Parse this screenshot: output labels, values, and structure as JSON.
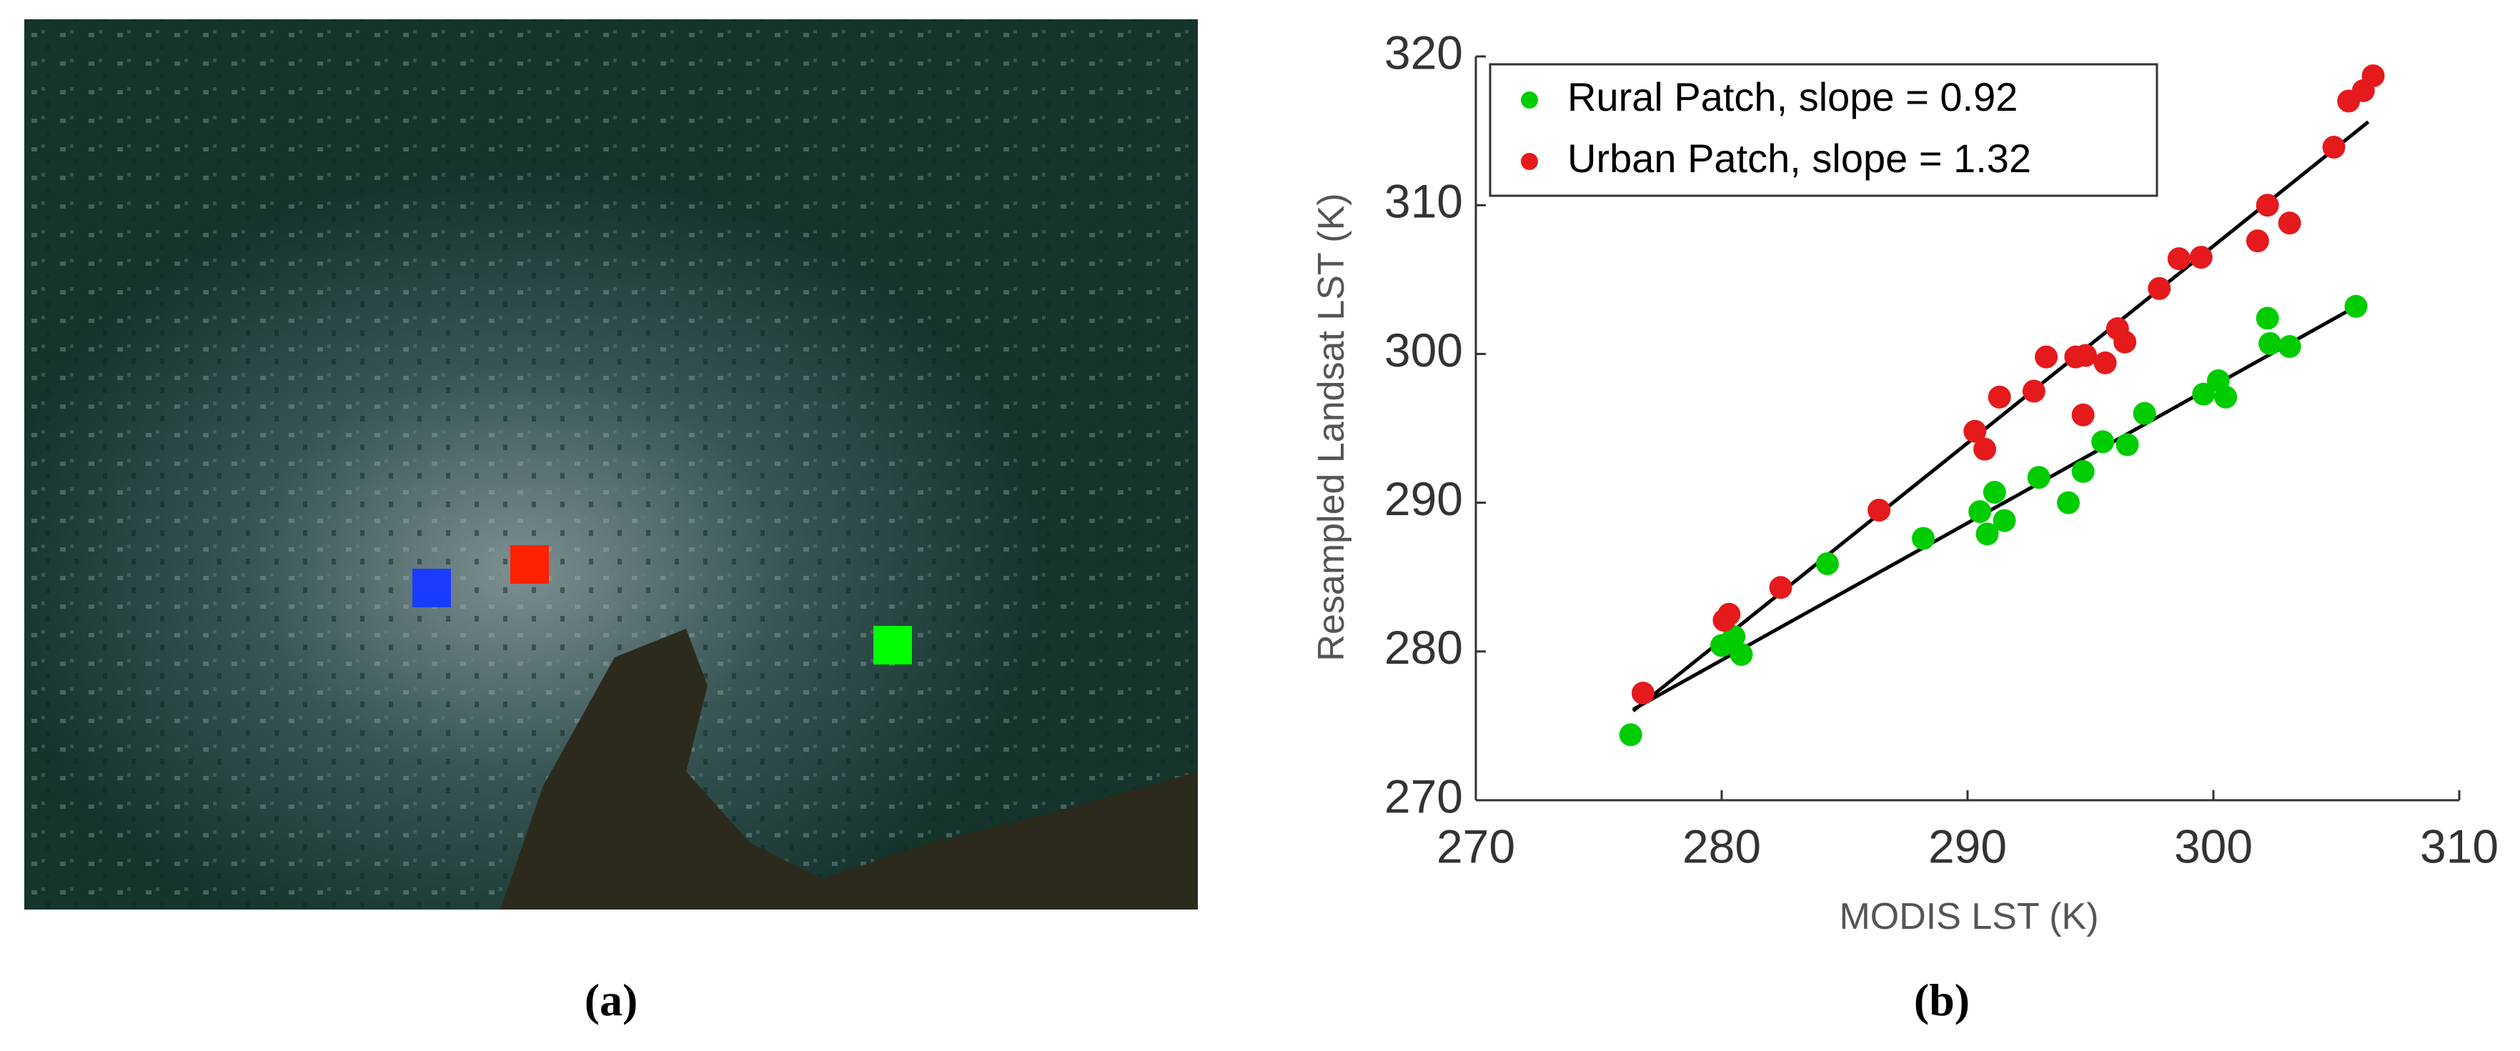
{
  "image_panel": {
    "label": "(a)"
  },
  "chart_data": {
    "type": "scatter",
    "panel_label": "(b)",
    "x_label": "MODIS LST (K)",
    "y_label": "Resampled Landsat LST (K)",
    "xlim": [
      270,
      310
    ],
    "xticks": [
      270,
      280,
      290,
      300,
      310
    ],
    "ylim": [
      270,
      320
    ],
    "yticks": [
      270,
      280,
      290,
      300,
      310,
      320
    ],
    "legend": "upper left",
    "series": [
      {
        "name": "Rural Patch, slope = 0.92",
        "color": "#00cc00",
        "x": [
          276.3,
          280.0,
          280.5,
          280.8,
          284.3,
          288.2,
          290.5,
          290.8,
          291.1,
          291.5,
          292.9,
          294.1,
          294.7,
          295.5,
          296.5,
          297.2,
          299.6,
          300.2,
          300.5,
          302.2,
          302.3,
          303.1,
          305.8
        ],
        "values": [
          274.4,
          280.4,
          281.0,
          279.8,
          285.9,
          287.6,
          289.4,
          287.9,
          290.7,
          288.8,
          291.7,
          290.0,
          292.1,
          294.1,
          293.9,
          296.0,
          297.3,
          298.2,
          297.1,
          302.4,
          300.7,
          300.5,
          303.2
        ]
      },
      {
        "name": "Urban Patch, slope = 1.32",
        "color": "#e41a1c",
        "x": [
          276.8,
          280.1,
          280.3,
          282.4,
          286.4,
          290.3,
          290.7,
          291.3,
          292.7,
          293.2,
          294.4,
          294.7,
          294.8,
          295.6,
          296.1,
          296.4,
          297.8,
          298.6,
          299.5,
          301.8,
          302.2,
          303.1,
          304.9,
          305.5,
          306.1,
          306.5
        ],
        "values": [
          277.2,
          282.1,
          282.5,
          284.3,
          289.5,
          294.8,
          293.6,
          297.1,
          297.5,
          299.8,
          299.8,
          295.9,
          299.9,
          299.4,
          301.7,
          300.8,
          304.4,
          306.4,
          306.5,
          307.6,
          310.0,
          308.8,
          313.9,
          317.0,
          317.7,
          318.7
        ]
      }
    ],
    "fit_lines": [
      {
        "color": "#000000",
        "x": [
          276.4,
          305.7
        ],
        "values": [
          276.1,
          303.1
        ]
      },
      {
        "color": "#000000",
        "x": [
          276.4,
          306.3
        ],
        "values": [
          276.0,
          315.6
        ]
      }
    ]
  }
}
